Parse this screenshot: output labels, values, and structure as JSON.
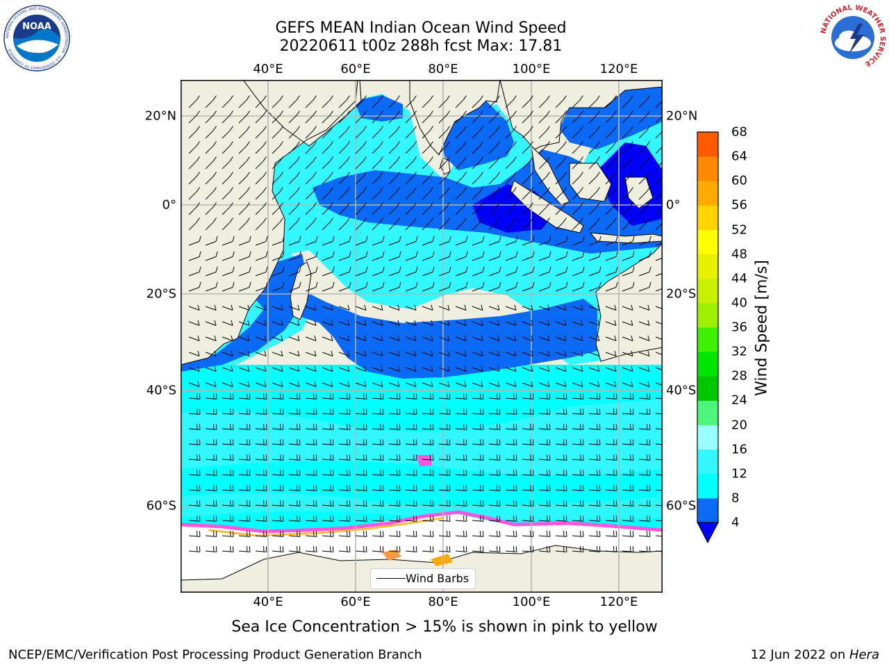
{
  "title": {
    "line1": "GEFS MEAN Indian Ocean Wind Speed",
    "line2": "20220611 t00z 288h fcst   Max: 17.81"
  },
  "map": {
    "lon_ticks": [
      "40°E",
      "60°E",
      "80°E",
      "100°E",
      "120°E"
    ],
    "lat_ticks": [
      "20°N",
      "0°",
      "20°S",
      "40°S",
      "60°S"
    ],
    "lon_range": [
      20,
      130
    ],
    "lat_range": [
      -72,
      28
    ],
    "land_color": "#efeedf",
    "ice_color": "#ffffff",
    "grid": true
  },
  "colorbar": {
    "label": "Wind Speed [m/s]",
    "ticks": [
      "68",
      "64",
      "60",
      "56",
      "52",
      "48",
      "44",
      "40",
      "36",
      "32",
      "28",
      "24",
      "20",
      "16",
      "12",
      "8",
      "4"
    ],
    "colors": [
      "#0a6af5",
      "#00ffff",
      "#33f7ff",
      "#99ffff",
      "#4df57a",
      "#00c800",
      "#00e600",
      "#3cf000",
      "#9ef000",
      "#c8f000",
      "#e6f000",
      "#ffff00",
      "#ffd500",
      "#ffaa00",
      "#ff8a00",
      "#ff5a00",
      "#ff2a00",
      "#ff0000"
    ],
    "under_color": "#0000ff"
  },
  "legend": {
    "label": "Wind Barbs"
  },
  "caption": "Sea Ice Concentration > 15% is shown in pink to yellow",
  "footer": {
    "left": "NCEP/EMC/Verification Post Processing Product Generation Branch",
    "right_date": "12 Jun 2022 on ",
    "right_host": "Hera"
  },
  "logos": {
    "noaa_text": "NOAA",
    "noaa_ring": "NATIONAL OCEANIC AND ATMOSPHERIC ADMINISTRATION · U.S. DEPARTMENT OF COMMERCE",
    "nws_ring": "NATIONAL WEATHER SERVICE"
  }
}
